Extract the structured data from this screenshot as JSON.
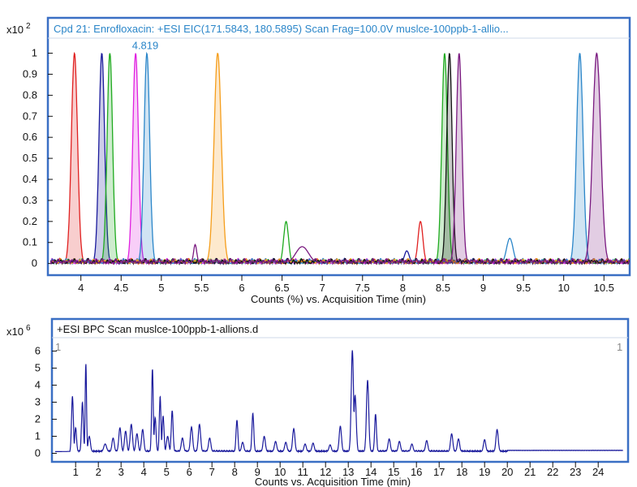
{
  "colors": {
    "frame": "#3a6fc4",
    "title_top": "#2b86c9",
    "title_bottom": "#111111",
    "bpc_line": "#1a1a9c"
  },
  "chart_data": [
    {
      "type": "line",
      "title": "Cpd 21: Enrofloxacin: +ESI EIC(171.5843, 180.5895) Scan Frag=100.0V muslce-100ppb-1-allio...",
      "multiplier": "x10",
      "multiplier_exp": "2",
      "xlabel": "Counts (%) vs. Acquisition Time (min)",
      "ylabel": "",
      "xlim": [
        3.62,
        10.82
      ],
      "ylim": [
        -0.04,
        1.06
      ],
      "x_ticks": [
        4,
        4.5,
        5,
        5.5,
        6,
        6.5,
        7,
        7.5,
        8,
        8.5,
        9,
        9.5,
        10,
        10.5
      ],
      "x_tick_labels": [
        "4",
        "4.5",
        "5",
        "5.5",
        "6",
        "6.5",
        "7",
        "7.5",
        "8",
        "8.5",
        "9",
        "9.5",
        "10",
        "10.5"
      ],
      "y_ticks": [
        0,
        0.1,
        0.2,
        0.3,
        0.4,
        0.5,
        0.6,
        0.7,
        0.8,
        0.9,
        1
      ],
      "y_tick_labels": [
        "0",
        "0.1",
        "0.2",
        "0.3",
        "0.4",
        "0.5",
        "0.6",
        "0.7",
        "0.8",
        "0.9",
        "1"
      ],
      "annotations": [
        {
          "text": "4.819",
          "x": 4.82,
          "y": 1.02
        }
      ],
      "series": [
        {
          "color": "#e02020",
          "peaks": [
            [
              3.92,
              1.0,
              0.038
            ],
            [
              8.22,
              0.2,
              0.03
            ]
          ],
          "filled": [
            0
          ]
        },
        {
          "color": "#1a1a9c",
          "peaks": [
            [
              4.26,
              1.0,
              0.035
            ],
            [
              8.05,
              0.06,
              0.03
            ]
          ],
          "filled": [
            0
          ]
        },
        {
          "color": "#1faa1f",
          "peaks": [
            [
              4.36,
              1.0,
              0.034
            ],
            [
              6.55,
              0.2,
              0.03
            ],
            [
              8.52,
              1.0,
              0.035
            ]
          ],
          "filled": [
            0,
            2
          ]
        },
        {
          "color": "#e020e0",
          "peaks": [
            [
              4.68,
              1.0,
              0.035
            ]
          ],
          "filled": [
            0
          ]
        },
        {
          "color": "#2b86c9",
          "peaks": [
            [
              4.82,
              1.0,
              0.035
            ],
            [
              9.33,
              0.12,
              0.04
            ],
            [
              10.2,
              1.0,
              0.04
            ]
          ],
          "filled": [
            0,
            2
          ]
        },
        {
          "color": "#f59d1a",
          "peaks": [
            [
              5.7,
              1.0,
              0.045
            ]
          ],
          "filled": [
            0
          ]
        },
        {
          "color": "#111111",
          "peaks": [
            [
              8.58,
              1.0,
              0.033
            ]
          ],
          "filled": [
            0
          ]
        },
        {
          "color": "#7a1a80",
          "peaks": [
            [
              5.42,
              0.09,
              0.02
            ],
            [
              6.75,
              0.08,
              0.08
            ],
            [
              8.7,
              1.0,
              0.035
            ],
            [
              10.41,
              1.0,
              0.05
            ]
          ],
          "filled": [
            2,
            3
          ]
        }
      ]
    },
    {
      "type": "line",
      "title": "+ESI BPC Scan muslce-100ppb-1-allions.d",
      "multiplier": "x10",
      "multiplier_exp": "6",
      "xlabel": "Counts vs. Acquisition Time (min)",
      "ylabel": "",
      "corner_labels": [
        "1",
        "1"
      ],
      "xlim": [
        0.1,
        25.1
      ],
      "ylim": [
        -0.5,
        6.6
      ],
      "x_ticks": [
        1,
        2,
        3,
        4,
        5,
        6,
        7,
        8,
        9,
        10,
        11,
        12,
        13,
        14,
        15,
        16,
        17,
        18,
        19,
        20,
        21,
        22,
        23,
        24
      ],
      "x_tick_labels": [
        "1",
        "2",
        "3",
        "4",
        "5",
        "6",
        "7",
        "8",
        "9",
        "10",
        "11",
        "12",
        "13",
        "14",
        "15",
        "16",
        "17",
        "18",
        "19",
        "20",
        "21",
        "22",
        "23",
        "24"
      ],
      "y_ticks": [
        0,
        1,
        2,
        3,
        4,
        5,
        6
      ],
      "y_tick_labels": [
        "0",
        "1",
        "2",
        "3",
        "4",
        "5",
        "6"
      ],
      "baseline": 0.1,
      "series": [
        {
          "color": "#1a1a9c",
          "peaks": [
            [
              0.86,
              3.25,
              0.04
            ],
            [
              1.0,
              1.4,
              0.04
            ],
            [
              1.3,
              2.9,
              0.04
            ],
            [
              1.45,
              5.15,
              0.03
            ],
            [
              1.6,
              0.9,
              0.05
            ],
            [
              2.3,
              0.45,
              0.06
            ],
            [
              2.65,
              0.8,
              0.05
            ],
            [
              2.95,
              1.4,
              0.05
            ],
            [
              3.2,
              1.2,
              0.05
            ],
            [
              3.45,
              1.6,
              0.05
            ],
            [
              3.7,
              1.05,
              0.05
            ],
            [
              3.95,
              1.3,
              0.05
            ],
            [
              4.38,
              4.85,
              0.035
            ],
            [
              4.5,
              2.0,
              0.04
            ],
            [
              4.72,
              3.25,
              0.035
            ],
            [
              4.85,
              2.1,
              0.04
            ],
            [
              5.05,
              0.9,
              0.05
            ],
            [
              5.25,
              2.4,
              0.04
            ],
            [
              5.7,
              0.8,
              0.05
            ],
            [
              6.1,
              1.45,
              0.05
            ],
            [
              6.45,
              1.6,
              0.05
            ],
            [
              6.9,
              0.8,
              0.05
            ],
            [
              8.1,
              1.85,
              0.04
            ],
            [
              8.35,
              0.55,
              0.05
            ],
            [
              8.8,
              2.25,
              0.04
            ],
            [
              9.3,
              0.9,
              0.05
            ],
            [
              9.8,
              0.6,
              0.05
            ],
            [
              10.25,
              0.55,
              0.05
            ],
            [
              10.6,
              1.35,
              0.05
            ],
            [
              11.1,
              0.45,
              0.05
            ],
            [
              11.45,
              0.5,
              0.05
            ],
            [
              12.2,
              0.4,
              0.05
            ],
            [
              12.65,
              1.5,
              0.05
            ],
            [
              13.18,
              5.95,
              0.05
            ],
            [
              13.3,
              3.3,
              0.05
            ],
            [
              13.85,
              4.2,
              0.05
            ],
            [
              14.2,
              2.2,
              0.04
            ],
            [
              14.8,
              0.75,
              0.05
            ],
            [
              15.25,
              0.6,
              0.05
            ],
            [
              15.8,
              0.45,
              0.05
            ],
            [
              16.45,
              0.65,
              0.05
            ],
            [
              17.55,
              1.05,
              0.05
            ],
            [
              17.85,
              0.75,
              0.05
            ],
            [
              19.0,
              0.7,
              0.05
            ],
            [
              19.55,
              1.3,
              0.05
            ]
          ]
        }
      ]
    }
  ]
}
